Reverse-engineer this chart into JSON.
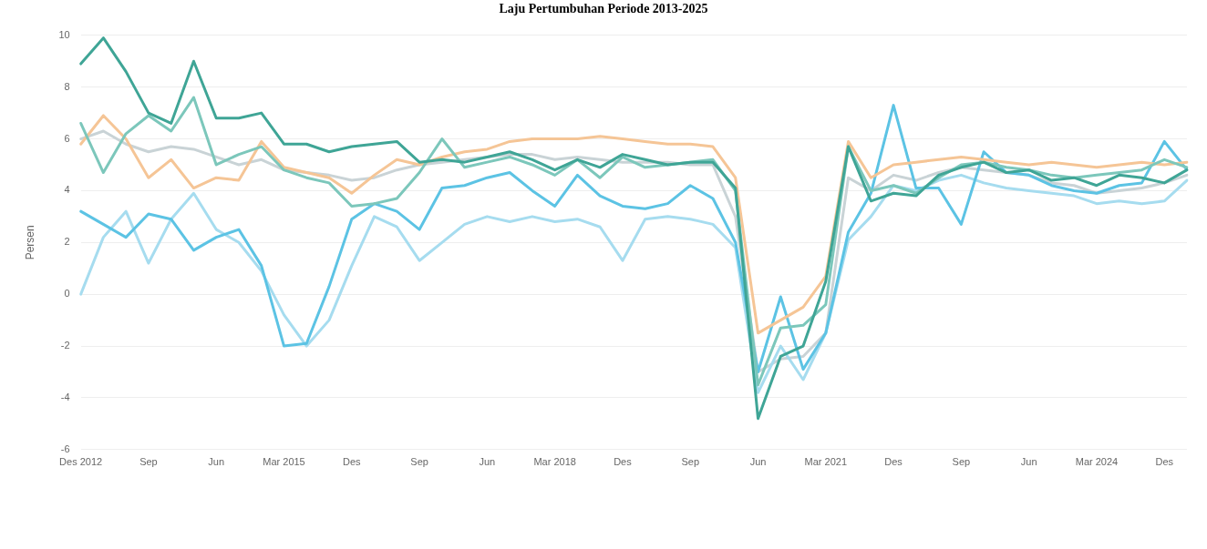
{
  "chart_data": {
    "type": "line",
    "title": "Laju Pertumbuhan Periode 2013-2025",
    "ylabel": "Persen",
    "categories": [
      "Des 2012",
      null,
      null,
      "Sep",
      null,
      null,
      "Jun",
      null,
      null,
      "Mar 2015",
      null,
      null,
      "Des",
      null,
      null,
      "Sep",
      null,
      null,
      "Jun",
      null,
      null,
      "Mar 2018",
      null,
      null,
      "Des",
      null,
      null,
      "Sep",
      null,
      null,
      "Jun",
      null,
      null,
      "Mar 2021",
      null,
      null,
      "Des",
      null,
      null,
      "Sep",
      null,
      null,
      "Jun",
      null,
      null,
      "Mar 2024",
      null,
      null,
      "Des",
      null
    ],
    "series": [
      {
        "color": "#3fa596",
        "values": [
          8.9,
          9.9,
          8.6,
          7.0,
          6.6,
          9.0,
          6.8,
          6.8,
          7.0,
          5.8,
          5.8,
          5.5,
          5.7,
          5.8,
          5.9,
          5.1,
          5.2,
          5.1,
          5.3,
          5.5,
          5.2,
          4.8,
          5.2,
          4.9,
          5.4,
          5.2,
          5.0,
          5.1,
          5.1,
          4.1,
          -4.8,
          -2.4,
          -2.0,
          0.5,
          5.7,
          3.6,
          3.9,
          3.8,
          4.6,
          4.9,
          5.1,
          4.7,
          4.8,
          4.4,
          4.5,
          4.2,
          4.6,
          4.5,
          4.3,
          4.8
        ]
      },
      {
        "color": "#7cc7bb",
        "values": [
          6.6,
          4.7,
          6.2,
          6.9,
          6.3,
          7.6,
          5.0,
          5.4,
          5.7,
          4.8,
          4.5,
          4.3,
          3.4,
          3.5,
          3.7,
          4.7,
          6.0,
          4.9,
          5.1,
          5.3,
          5.0,
          4.6,
          5.2,
          4.5,
          5.3,
          4.9,
          5.0,
          5.1,
          5.2,
          4.0,
          -3.5,
          -1.3,
          -1.2,
          -0.4,
          5.7,
          4.0,
          4.2,
          3.9,
          4.5,
          5.0,
          5.1,
          4.9,
          4.8,
          4.6,
          4.5,
          4.6,
          4.7,
          4.8,
          5.2,
          4.9
        ]
      },
      {
        "color": "#f5c596",
        "values": [
          5.8,
          6.9,
          6.0,
          4.5,
          5.2,
          4.1,
          4.5,
          4.4,
          5.9,
          4.9,
          4.7,
          4.5,
          3.9,
          4.6,
          5.2,
          5.0,
          5.3,
          5.5,
          5.6,
          5.9,
          6.0,
          6.0,
          6.0,
          6.1,
          6.0,
          5.9,
          5.8,
          5.8,
          5.7,
          4.5,
          -1.5,
          -1.0,
          -0.5,
          0.7,
          5.9,
          4.5,
          5.0,
          5.1,
          5.2,
          5.3,
          5.2,
          5.1,
          5.0,
          5.1,
          5.0,
          4.9,
          5.0,
          5.1,
          5.0,
          5.1
        ]
      },
      {
        "color": "#5cc3e4",
        "values": [
          3.2,
          2.7,
          2.2,
          3.1,
          2.9,
          1.7,
          2.2,
          2.5,
          1.1,
          -2.0,
          -1.9,
          0.3,
          2.9,
          3.5,
          3.2,
          2.5,
          4.1,
          4.2,
          4.5,
          4.7,
          4.0,
          3.4,
          4.6,
          3.8,
          3.4,
          3.3,
          3.5,
          4.2,
          3.7,
          2.0,
          -3.0,
          -0.1,
          -2.9,
          -1.5,
          2.4,
          3.9,
          7.3,
          4.1,
          4.1,
          2.7,
          5.5,
          4.7,
          4.6,
          4.2,
          4.0,
          3.9,
          4.2,
          4.3,
          5.9,
          4.8
        ]
      },
      {
        "color": "#a6dcef",
        "values": [
          0.0,
          2.2,
          3.2,
          1.2,
          2.9,
          3.9,
          2.5,
          2.0,
          0.9,
          -0.8,
          -2.0,
          -1.0,
          1.1,
          3.0,
          2.6,
          1.3,
          2.0,
          2.7,
          3.0,
          2.8,
          3.0,
          2.8,
          2.9,
          2.6,
          1.3,
          2.9,
          3.0,
          2.9,
          2.7,
          1.8,
          -3.8,
          -2.0,
          -3.3,
          -1.5,
          2.1,
          3.0,
          4.2,
          4.0,
          4.4,
          4.6,
          4.3,
          4.1,
          4.0,
          3.9,
          3.8,
          3.5,
          3.6,
          3.5,
          3.6,
          4.4
        ]
      },
      {
        "color": "#c9d3d6",
        "values": [
          6.0,
          6.3,
          5.8,
          5.5,
          5.7,
          5.6,
          5.3,
          5.0,
          5.2,
          4.8,
          4.7,
          4.6,
          4.4,
          4.5,
          4.8,
          5.0,
          5.1,
          5.2,
          5.3,
          5.4,
          5.4,
          5.2,
          5.3,
          5.2,
          5.1,
          5.1,
          5.1,
          5.0,
          5.0,
          3.0,
          -3.0,
          -2.5,
          -2.4,
          -1.5,
          4.5,
          4.0,
          4.6,
          4.4,
          4.7,
          4.9,
          4.8,
          4.7,
          4.6,
          4.3,
          4.2,
          3.9,
          4.0,
          4.1,
          4.3,
          4.6
        ]
      }
    ],
    "ylim": [
      -6,
      10
    ],
    "yticks": [
      -6,
      -4,
      -2,
      0,
      2,
      4,
      6,
      8,
      10
    ],
    "grid": "y",
    "marker": "none"
  }
}
